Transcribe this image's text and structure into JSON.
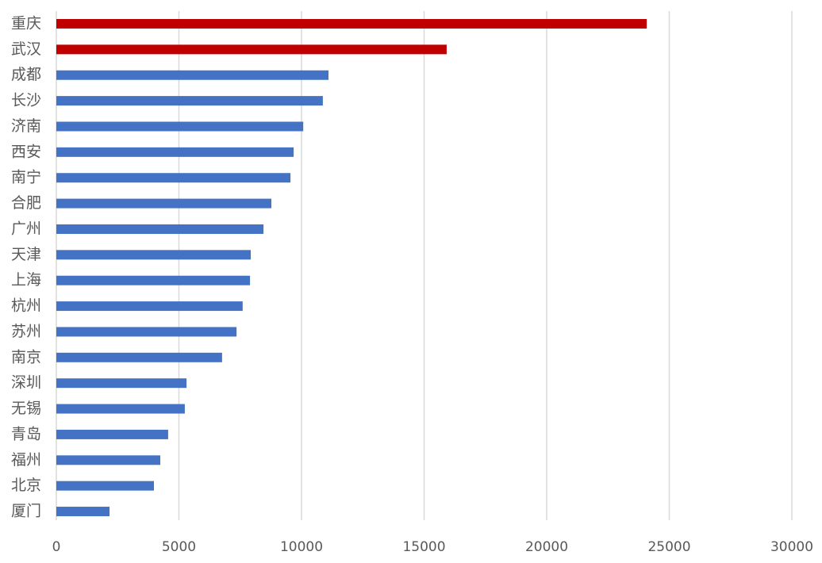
{
  "chart_data": {
    "type": "hbar",
    "categories": [
      "重庆",
      "武汉",
      "成都",
      "长沙",
      "济南",
      "西安",
      "南宁",
      "合肥",
      "广州",
      "天津",
      "上海",
      "杭州",
      "苏州",
      "南京",
      "深圳",
      "无锡",
      "青岛",
      "福州",
      "北京",
      "厦门"
    ],
    "values": [
      24080,
      15920,
      11100,
      10870,
      10070,
      9680,
      9550,
      8770,
      8450,
      7930,
      7900,
      7600,
      7350,
      6760,
      5310,
      5240,
      4560,
      4240,
      3980,
      2170
    ],
    "colors": [
      "#c00000",
      "#c00000",
      "#4472c4",
      "#4472c4",
      "#4472c4",
      "#4472c4",
      "#4472c4",
      "#4472c4",
      "#4472c4",
      "#4472c4",
      "#4472c4",
      "#4472c4",
      "#4472c4",
      "#4472c4",
      "#4472c4",
      "#4472c4",
      "#4472c4",
      "#4472c4",
      "#4472c4",
      "#4472c4"
    ],
    "xlim": [
      0,
      30000
    ],
    "xticks": [
      0,
      5000,
      10000,
      15000,
      20000,
      25000,
      30000
    ],
    "grid": true
  }
}
